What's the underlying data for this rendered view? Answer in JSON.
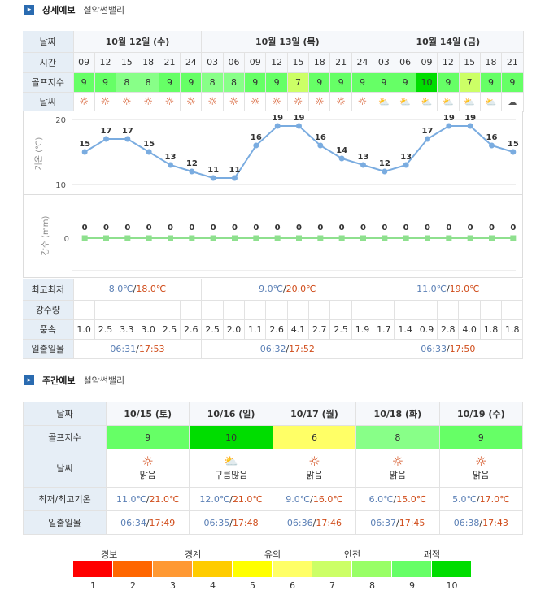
{
  "detail": {
    "title": "상세예보",
    "location": "설악썬밸리",
    "label_date": "날짜",
    "label_time": "시간",
    "label_golf": "골프지수",
    "label_weather": "날씨",
    "label_minmax": "최고최저",
    "label_rainfall": "강수량",
    "label_wind": "풍속",
    "label_sun": "일출일몰",
    "dates": [
      "10월 12일 (수)",
      "10월 13일 (목)",
      "10월 14일 (금)"
    ],
    "times": [
      "09",
      "12",
      "15",
      "18",
      "21",
      "24",
      "03",
      "06",
      "09",
      "12",
      "15",
      "18",
      "21",
      "24",
      "03",
      "06",
      "09",
      "12",
      "15",
      "18",
      "21"
    ],
    "golf": [
      9,
      9,
      8,
      8,
      9,
      9,
      8,
      8,
      9,
      9,
      7,
      9,
      9,
      9,
      9,
      9,
      10,
      9,
      7,
      9,
      9
    ],
    "weather_icons": [
      "sun-icon",
      "sun-icon",
      "sun-icon",
      "sun-icon",
      "sun-icon",
      "sun-icon",
      "sun-icon",
      "sun-icon",
      "sun-icon",
      "sun-icon",
      "sun-icon",
      "sun-icon",
      "sun-icon",
      "sun-icon",
      "cloud-sun-icon",
      "cloud-sun-icon",
      "cloud-sun-icon",
      "cloud-sun-icon",
      "cloud-sun-icon",
      "cloud-sun-icon",
      "cloud-icon"
    ],
    "minmax": [
      {
        "min": "8.0℃",
        "max": "18.0℃"
      },
      {
        "min": "9.0℃",
        "max": "20.0℃"
      },
      {
        "min": "11.0℃",
        "max": "19.0℃"
      }
    ],
    "wind": [
      "1.0",
      "2.5",
      "3.3",
      "3.0",
      "2.5",
      "2.6",
      "2.5",
      "2.0",
      "1.1",
      "2.6",
      "4.1",
      "2.7",
      "2.5",
      "1.9",
      "1.7",
      "1.4",
      "0.9",
      "2.8",
      "4.0",
      "1.8",
      "1.8"
    ],
    "sun": [
      {
        "rise": "06:31",
        "set": "17:53"
      },
      {
        "rise": "06:32",
        "set": "17:52"
      },
      {
        "rise": "06:33",
        "set": "17:50"
      }
    ]
  },
  "chart_data": [
    {
      "type": "line",
      "ylabel": "기온 (℃)",
      "ylim": [
        10,
        20
      ],
      "yticks": [
        "20",
        "10"
      ],
      "x": [
        "09",
        "12",
        "15",
        "18",
        "21",
        "24",
        "03",
        "06",
        "09",
        "12",
        "15",
        "18",
        "21",
        "24",
        "03",
        "06",
        "09",
        "12",
        "15",
        "18",
        "21"
      ],
      "values": [
        15,
        17,
        17,
        15,
        13,
        12,
        11,
        11,
        16,
        19,
        19,
        16,
        14,
        13,
        12,
        13,
        17,
        19,
        19,
        16,
        15
      ],
      "color": "#7aace0"
    },
    {
      "type": "line",
      "ylabel": "강수 (mm)",
      "yticks": [
        "0"
      ],
      "x": [
        "09",
        "12",
        "15",
        "18",
        "21",
        "24",
        "03",
        "06",
        "09",
        "12",
        "15",
        "18",
        "21",
        "24",
        "03",
        "06",
        "09",
        "12",
        "15",
        "18",
        "21"
      ],
      "values": [
        0,
        0,
        0,
        0,
        0,
        0,
        0,
        0,
        0,
        0,
        0,
        0,
        0,
        0,
        0,
        0,
        0,
        0,
        0,
        0,
        0
      ],
      "color": "#8ee08e"
    }
  ],
  "weekly": {
    "title": "주간예보",
    "location": "설악썬밸리",
    "label_date": "날짜",
    "label_golf": "골프지수",
    "label_weather": "날씨",
    "label_temp": "최저/최고기온",
    "label_sun": "일출일몰",
    "days": [
      {
        "date": "10/15 (토)",
        "golf": 9,
        "icon": "sun-icon",
        "desc": "맑음",
        "min": "11.0℃",
        "max": "21.0℃",
        "rise": "06:34",
        "set": "17:49"
      },
      {
        "date": "10/16 (일)",
        "golf": 10,
        "icon": "cloud-sun-icon",
        "desc": "구름많음",
        "min": "12.0℃",
        "max": "21.0℃",
        "rise": "06:35",
        "set": "17:48"
      },
      {
        "date": "10/17 (월)",
        "golf": 6,
        "icon": "sun-icon",
        "desc": "맑음",
        "min": "9.0℃",
        "max": "16.0℃",
        "rise": "06:36",
        "set": "17:46"
      },
      {
        "date": "10/18 (화)",
        "golf": 8,
        "icon": "sun-icon",
        "desc": "맑음",
        "min": "6.0℃",
        "max": "15.0℃",
        "rise": "06:37",
        "set": "17:45"
      },
      {
        "date": "10/19 (수)",
        "golf": 9,
        "icon": "sun-icon",
        "desc": "맑음",
        "min": "5.0℃",
        "max": "17.0℃",
        "rise": "06:38",
        "set": "17:43"
      }
    ]
  },
  "legend": {
    "labels": [
      "경보",
      "경계",
      "유의",
      "안전",
      "쾌적"
    ],
    "colors": [
      "#ff0000",
      "#ff6600",
      "#ff9933",
      "#ffcc00",
      "#ffff00",
      "#ffff66",
      "#ccff66",
      "#99ff66",
      "#66ff66",
      "#00dd00"
    ],
    "numbers": [
      "1",
      "2",
      "3",
      "4",
      "5",
      "6",
      "7",
      "8",
      "9",
      "10"
    ]
  }
}
